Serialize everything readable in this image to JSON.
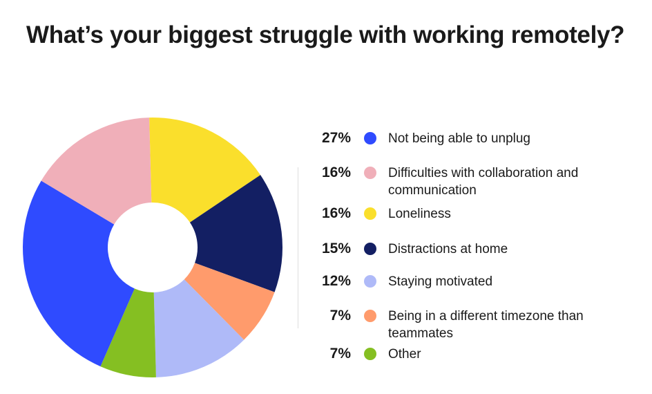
{
  "chart_data": {
    "type": "pie",
    "title": "What’s your biggest struggle with working remotely?",
    "donut": true,
    "legend_position": "right",
    "slices": [
      {
        "label": "Not being able to unplug",
        "value": 27,
        "pct_label": "27%",
        "color": "#2F4BFF"
      },
      {
        "label": "Difficulties with collaboration and communication",
        "value": 16,
        "pct_label": "16%",
        "color": "#F0AFB9"
      },
      {
        "label": "Loneliness",
        "value": 16,
        "pct_label": "16%",
        "color": "#FADF2C"
      },
      {
        "label": "Distractions at home",
        "value": 15,
        "pct_label": "15%",
        "color": "#131F63"
      },
      {
        "label": "Staying motivated",
        "value": 12,
        "pct_label": "12%",
        "color": "#AFBAF8"
      },
      {
        "label": "Being in a different timezone than teammates",
        "value": 7,
        "pct_label": "7%",
        "color": "#FF9B6C"
      },
      {
        "label": "Other",
        "value": 7,
        "pct_label": "7%",
        "color": "#85BF22"
      }
    ],
    "clockwise_order_from_top": [
      "Loneliness",
      "Distractions at home",
      "Being in a different timezone than teammates",
      "Staying motivated",
      "Other",
      "Not being able to unplug",
      "Difficulties with collaboration and communication"
    ]
  }
}
